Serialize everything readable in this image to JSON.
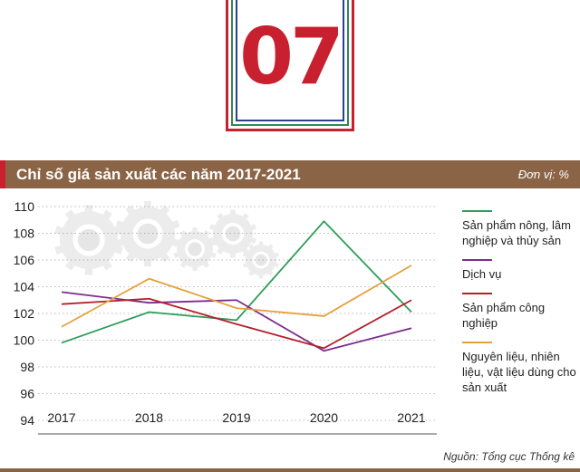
{
  "badge": {
    "number": "07"
  },
  "header": {
    "title": "Chỉ số giá sản xuất các năm 2017-2021",
    "unit": "Đơn vị: %"
  },
  "source": "Nguồn: Tổng cục Thống kê",
  "legend": [
    {
      "label": "Sản phẩm nông, lâm nghiệp và thủy sản",
      "color": "#2e9e5b"
    },
    {
      "label": "Dịch vụ",
      "color": "#7b2d8e"
    },
    {
      "label": "Sản phẩm công nghiệp",
      "color": "#b5202b"
    },
    {
      "label": "Nguyên liệu, nhiên liệu, vật liệu dùng cho sản xuất",
      "color": "#e8a03c"
    }
  ],
  "chart_data": {
    "type": "line",
    "title": "Chỉ số giá sản xuất các năm 2017-2021",
    "x": [
      "2017",
      "2018",
      "2019",
      "2020",
      "2021"
    ],
    "ylim": [
      94,
      110
    ],
    "yticks": [
      94,
      96,
      98,
      100,
      102,
      104,
      106,
      108,
      110
    ],
    "grid": false,
    "legend_position": "right",
    "series": [
      {
        "name": "Sản phẩm nông, lâm nghiệp và thủy sản",
        "color": "#2e9e5b",
        "values": [
          99.8,
          102.1,
          101.5,
          108.9,
          102.1
        ]
      },
      {
        "name": "Dịch vụ",
        "color": "#7b2d8e",
        "values": [
          103.6,
          102.8,
          103.0,
          99.2,
          100.9
        ]
      },
      {
        "name": "Sản phẩm công nghiệp",
        "color": "#b5202b",
        "values": [
          102.7,
          103.1,
          101.2,
          99.4,
          103.0
        ]
      },
      {
        "name": "Nguyên liệu, nhiên liệu, vật liệu dùng cho sản xuất",
        "color": "#e8a03c",
        "values": [
          101.0,
          104.6,
          102.4,
          101.8,
          105.6
        ]
      }
    ]
  }
}
